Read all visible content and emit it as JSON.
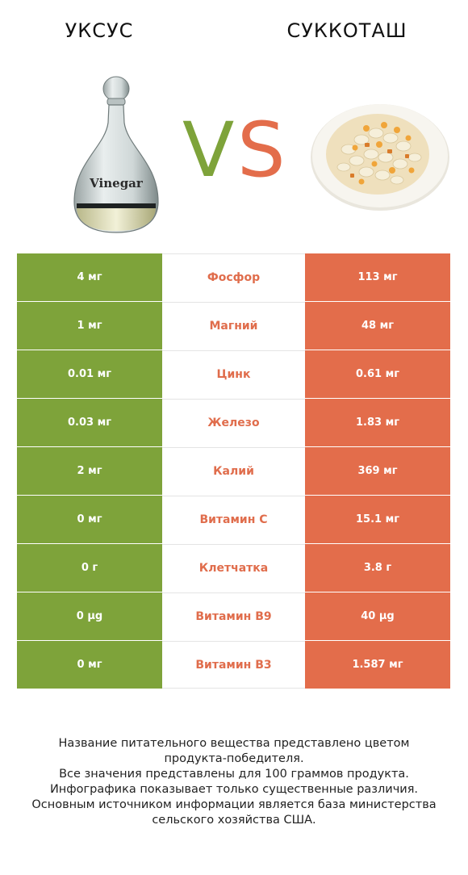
{
  "header": {
    "left_title": "УКСУС",
    "right_title": "СУККОТАШ",
    "vs_left": "V",
    "vs_right": "S",
    "bottle_label": "Vinegar"
  },
  "colors": {
    "left_winner": "#7ea33a",
    "right_winner": "#e36d4b",
    "nutrient_label": "#e06d4c"
  },
  "rows": [
    {
      "left": "4 мг",
      "nutrient": "Фосфор",
      "right": "113 мг"
    },
    {
      "left": "1 мг",
      "nutrient": "Магний",
      "right": "48 мг"
    },
    {
      "left": "0.01 мг",
      "nutrient": "Цинк",
      "right": "0.61 мг"
    },
    {
      "left": "0.03 мг",
      "nutrient": "Железо",
      "right": "1.83 мг"
    },
    {
      "left": "2 мг",
      "nutrient": "Калий",
      "right": "369 мг"
    },
    {
      "left": "0 мг",
      "nutrient": "Витамин C",
      "right": "15.1 мг"
    },
    {
      "left": "0 г",
      "nutrient": "Клетчатка",
      "right": "3.8 г"
    },
    {
      "left": "0 µg",
      "nutrient": "Витамин B9",
      "right": "40 µg"
    },
    {
      "left": "0 мг",
      "nutrient": "Витамин B3",
      "right": "1.587 мг"
    }
  ],
  "footer": [
    "Название питательного вещества представлено цветом",
    "продукта-победителя.",
    "Все значения представлены для 100 граммов продукта.",
    "Инфографика показывает только существенные различия.",
    "Основным источником информации является база министерства",
    "сельского хозяйства США."
  ]
}
